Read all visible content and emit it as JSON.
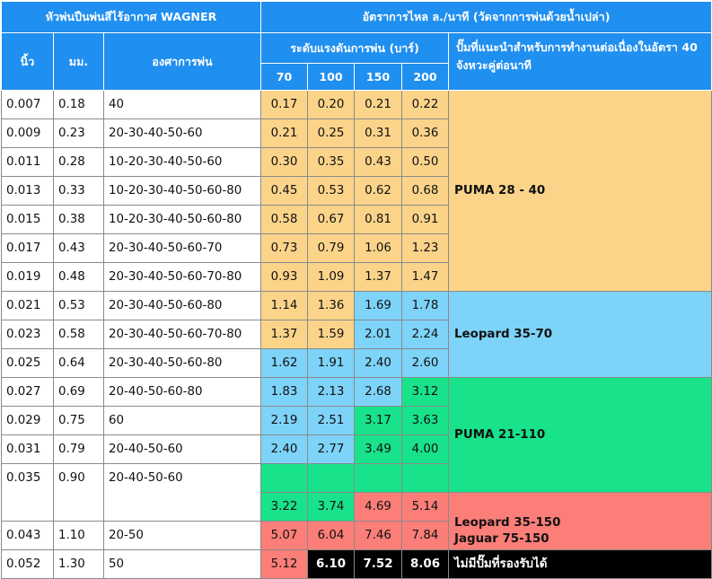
{
  "header": {
    "nozzle_title": "หัวพ่นปืนพ่นสีไร้อากาศ WAGNER",
    "flow_title": "อัตราการไหล ล./นาที (วัดจากการพ่นด้วยน้ำเปล่า)",
    "col_inch": "นิ้ว",
    "col_mm": "มม.",
    "col_angle": "องศาการพ่น",
    "pressure_title": "ระดับแรงดันการพ่น (บาร์)",
    "pump_title": "ปั๊มที่แนะนำสำหรับการทำงานต่อเนื่องในอัตรา 40 จังหวะคู่ต่อนาที",
    "pressures": [
      "70",
      "100",
      "150",
      "200"
    ]
  },
  "rows": [
    {
      "inch": "0.007",
      "mm": "0.18",
      "angles": "40",
      "flows": [
        "0.17",
        "0.20",
        "0.21",
        "0.22"
      ]
    },
    {
      "inch": "0.009",
      "mm": "0.23",
      "angles": "20-30-40-50-60",
      "flows": [
        "0.21",
        "0.25",
        "0.31",
        "0.36"
      ]
    },
    {
      "inch": "0.011",
      "mm": "0.28",
      "angles": "10-20-30-40-50-60",
      "flows": [
        "0.30",
        "0.35",
        "0.43",
        "0.50"
      ]
    },
    {
      "inch": "0.013",
      "mm": "0.33",
      "angles": "10-20-30-40-50-60-80",
      "flows": [
        "0.45",
        "0.53",
        "0.62",
        "0.68"
      ]
    },
    {
      "inch": "0.015",
      "mm": "0.38",
      "angles": "10-20-30-40-50-60-80",
      "flows": [
        "0.58",
        "0.67",
        "0.81",
        "0.91"
      ]
    },
    {
      "inch": "0.017",
      "mm": "0.43",
      "angles": "20-30-40-50-60-70",
      "flows": [
        "0.73",
        "0.79",
        "1.06",
        "1.23"
      ]
    },
    {
      "inch": "0.019",
      "mm": "0.48",
      "angles": "20-30-40-50-60-70-80",
      "flows": [
        "0.93",
        "1.09",
        "1.37",
        "1.47"
      ]
    },
    {
      "inch": "0.021",
      "mm": "0.53",
      "angles": "20-30-40-50-60-80",
      "flows": [
        "1.14",
        "1.36",
        "1.69",
        "1.78"
      ]
    },
    {
      "inch": "0.023",
      "mm": "0.58",
      "angles": "20-30-40-50-60-70-80",
      "flows": [
        "1.37",
        "1.59",
        "2.01",
        "2.24"
      ]
    },
    {
      "inch": "0.025",
      "mm": "0.64",
      "angles": "20-30-40-50-60-80",
      "flows": [
        "1.62",
        "1.91",
        "2.40",
        "2.60"
      ]
    },
    {
      "inch": "0.027",
      "mm": "0.69",
      "angles": "20-40-50-60-80",
      "flows": [
        "1.83",
        "2.13",
        "2.68",
        "3.12"
      ]
    },
    {
      "inch": "0.029",
      "mm": "0.75",
      "angles": "60",
      "flows": [
        "2.19",
        "2.51",
        "3.17",
        "3.63"
      ]
    },
    {
      "inch": "0.031",
      "mm": "0.79",
      "angles": "20-40-50-60",
      "flows": [
        "2.40",
        "2.77",
        "3.49",
        "4.00"
      ]
    },
    {
      "inch": "0.035",
      "mm": "0.90",
      "angles": "20-40-50-60",
      "flows": [
        "3.22",
        "3.74",
        "4.69",
        "5.14"
      ]
    },
    {
      "inch": "0.043",
      "mm": "1.10",
      "angles": "20-50",
      "flows": [
        "5.07",
        "6.04",
        "7.46",
        "7.84"
      ]
    },
    {
      "inch": "0.052",
      "mm": "1.30",
      "angles": "50",
      "flows": [
        "5.12",
        "6.10",
        "7.52",
        "8.06"
      ]
    }
  ],
  "pumps": {
    "puma_28_40": "PUMA 28 - 40",
    "leopard_35_70": "Leopard 35-70",
    "puma_21_110": "PUMA 21-110",
    "leopard_35_150": "Leopard 35-150",
    "jaguar_75_150": "Jaguar 75-150",
    "none": "ไม่มีปั๊มที่รองรับได้"
  },
  "colors": {
    "header_blue": "#1f8ff0",
    "yellow": "#fbd48a",
    "light_blue": "#7ed3f8",
    "green": "#18e28a",
    "salmon": "#fb7e78",
    "black": "#000000"
  }
}
